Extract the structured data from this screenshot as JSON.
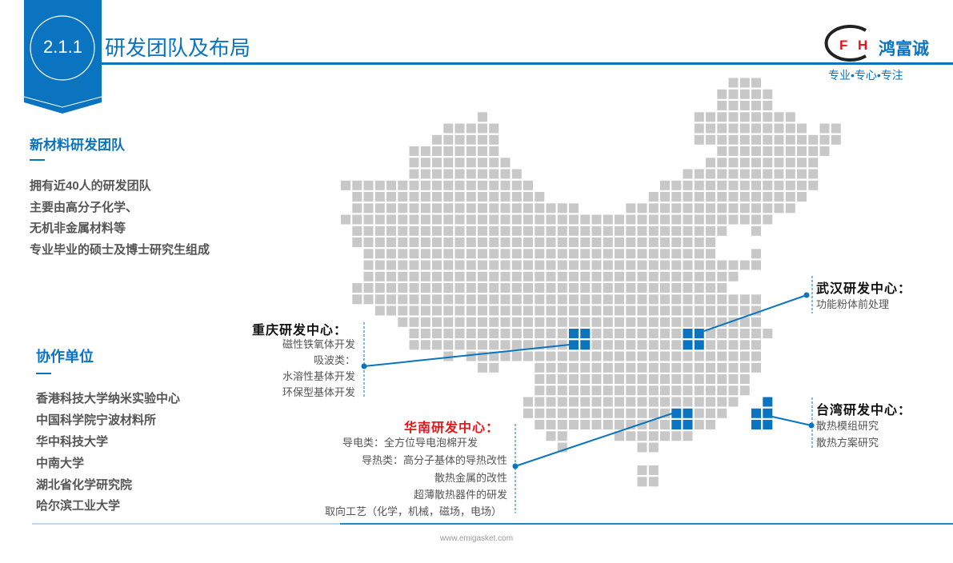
{
  "header": {
    "section_number": "2.1.1",
    "title": "研发团队及布局"
  },
  "logo": {
    "mark_letters": "FH",
    "brand_name": "鸿富诚",
    "tagline": "专业•专心•专注"
  },
  "team": {
    "heading": "新材料研发团队",
    "lines": [
      "拥有近40人的研发团队",
      "主要由高分子化学、",
      "无机非金属材料等",
      "专业毕业的硕士及博士研究生组成"
    ]
  },
  "partners": {
    "heading": "协作单位",
    "items": [
      "香港科技大学纳米实验中心",
      "中国科学院宁波材料所",
      "华中科技大学",
      "中南大学",
      "湖北省化学研究院",
      "哈尔滨工业大学"
    ]
  },
  "centers": {
    "chongqing": {
      "title": "重庆研发中心：",
      "lines": [
        "磁性铁氧体开发",
        "吸波类：",
        "水溶性基体开发",
        "环保型基体开发"
      ]
    },
    "south_china": {
      "title": "华南研发中心：",
      "lines": [
        "导电类：全方位导电泡棉开发",
        "导热类：高分子基体的导热改性",
        "散热金属的改性",
        "超薄散热器件的研发",
        "取向工艺（化学，机械，磁场，电场）"
      ]
    },
    "wuhan": {
      "title": "武汉研发中心：",
      "lines": [
        "功能粉体前处理"
      ]
    },
    "taiwan": {
      "title": "台湾研发中心：",
      "lines": [
        "散热模组研究",
        "散热方案研究"
      ]
    }
  },
  "footer": {
    "url": "www.emigasket.com"
  },
  "colors": {
    "accent": "#0a74c0",
    "map_tile": "#c8c8c8",
    "highlight_title": "#e8141c",
    "logo_red": "#e8141c"
  }
}
